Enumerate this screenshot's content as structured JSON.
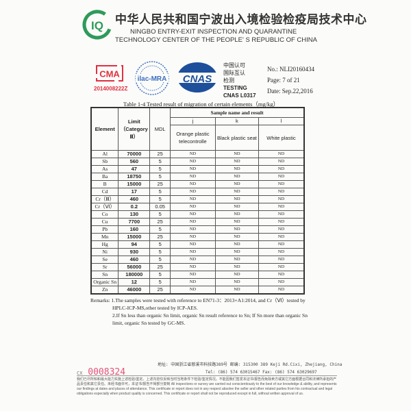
{
  "header": {
    "cn_title": "中华人民共和国宁波出入境检验检疫局技术中心",
    "en_line1": "NINGBO ENTRY-EXIT INSPECTION AND QUARANTINE",
    "en_line2": "TECHNOLOGY CENTER OF THE PEOPLE' S REPUBLIC OF CHINA",
    "logo_text": "CIQ",
    "cma_text": "CMA",
    "cma_number": "2014008222Z",
    "ilac_text": "ilac-MRA",
    "cnas_logo_text": "CNAS",
    "cnas_cn": [
      "中国认可",
      "国际互认",
      "检测"
    ],
    "cnas_testing": "TESTING",
    "cnas_number": "CNAS L0317",
    "no": "No.: NLI20160434",
    "page": "Page: 7 of 21",
    "date": "Date: Sep.22,2016"
  },
  "table": {
    "caption": "Table 1-4   Tested result of migration of certain elements（mg/kg）",
    "headers": {
      "element": "Element",
      "limit": "Limit（Category Ⅲ）",
      "mdl": "MDL",
      "sample_group": "Sample name and result"
    },
    "samples": [
      {
        "id": "j",
        "name": "Orange plastic telecontrolle"
      },
      {
        "id": "k",
        "name": "Black plastic seat"
      },
      {
        "id": "l",
        "name": "White plastic"
      }
    ],
    "rows": [
      {
        "element": "Al",
        "limit": "70000",
        "mdl": "25",
        "results": [
          "ND",
          "ND",
          "ND"
        ]
      },
      {
        "element": "Sb",
        "limit": "560",
        "mdl": "5",
        "results": [
          "ND",
          "ND",
          "ND"
        ]
      },
      {
        "element": "As",
        "limit": "47",
        "mdl": "5",
        "results": [
          "ND",
          "ND",
          "ND"
        ]
      },
      {
        "element": "Ba",
        "limit": "18750",
        "mdl": "5",
        "results": [
          "ND",
          "ND",
          "ND"
        ]
      },
      {
        "element": "B",
        "limit": "15000",
        "mdl": "25",
        "results": [
          "ND",
          "ND",
          "ND"
        ]
      },
      {
        "element": "Cd",
        "limit": "17",
        "mdl": "5",
        "results": [
          "ND",
          "ND",
          "ND"
        ]
      },
      {
        "element": "Cr（Ⅲ）",
        "limit": "460",
        "mdl": "5",
        "results": [
          "ND",
          "ND",
          "ND"
        ]
      },
      {
        "element": "Cr（Ⅵ）",
        "limit": "0.2",
        "mdl": "0.05",
        "results": [
          "ND",
          "ND",
          "ND"
        ]
      },
      {
        "element": "Co",
        "limit": "130",
        "mdl": "5",
        "results": [
          "ND",
          "ND",
          "ND"
        ]
      },
      {
        "element": "Cu",
        "limit": "7700",
        "mdl": "25",
        "results": [
          "ND",
          "ND",
          "ND"
        ]
      },
      {
        "element": "Pb",
        "limit": "160",
        "mdl": "5",
        "results": [
          "ND",
          "ND",
          "ND"
        ]
      },
      {
        "element": "Mn",
        "limit": "15000",
        "mdl": "25",
        "results": [
          "ND",
          "ND",
          "ND"
        ]
      },
      {
        "element": "Hg",
        "limit": "94",
        "mdl": "5",
        "results": [
          "ND",
          "ND",
          "ND"
        ]
      },
      {
        "element": "Ni",
        "limit": "930",
        "mdl": "5",
        "results": [
          "ND",
          "ND",
          "ND"
        ]
      },
      {
        "element": "Se",
        "limit": "460",
        "mdl": "5",
        "results": [
          "ND",
          "ND",
          "ND"
        ]
      },
      {
        "element": "Sr",
        "limit": "56000",
        "mdl": "25",
        "results": [
          "ND",
          "ND",
          "ND"
        ]
      },
      {
        "element": "Sn",
        "limit": "180000",
        "mdl": "5",
        "results": [
          "ND",
          "ND",
          "ND"
        ]
      },
      {
        "element": "Organic Sn",
        "limit": "12",
        "mdl": "5",
        "results": [
          "ND",
          "ND",
          "ND"
        ]
      },
      {
        "element": "Zn",
        "limit": "46000",
        "mdl": "25",
        "results": [
          "ND",
          "ND",
          "ND"
        ]
      }
    ]
  },
  "remarks": {
    "line1": "Remarks: 1.The samples were tested with reference to EN71-3：2013+A1:2014, and Cr（Ⅵ）tested by",
    "line1b": "HPLC-ICP-MS,other tested by ICP-AES.",
    "line2": "2.If Sn less than organic Sn limit, organic Sn result reference to Sn; If Sn more than organic Sn",
    "line2b": "limit, organic Sn tested by GC-MS."
  },
  "footer": {
    "address": "地址: 中国浙江省慈溪市科技路389号   邮编: 315300   389 Keji Rd.Cixi, Zhejiang, China",
    "phone": "Tel: (86) 574 63015467      Fax: (86) 574 63029697",
    "serial_prefix": "CX",
    "serial": "0008324",
    "disclaimer_cn": "我们已尽所知和最大能力实施上述检验/鉴定。上述内容仅反映当时当地条件下检验/鉴定情况。不能因我们签发本证书/报告而免除卖方或其它方面根据合同和法律所承担的产品责任和其它责任。未经书面许可，本证书/报告不得部分复制",
    "disclaimer_en": "All inspections or survey are carried out conscientiously to the best of our knowledge & ability, and represents our findings at dates and places of attendance. This certificate or report does not in any respect absolve the seller and other related parties from his contractual and legal obligations especially when product quality is concerned. This certificate or report shall not be reproduced except in full, without written approval of us."
  },
  "colors": {
    "ciq_green": "#2e9a5a",
    "cma_red": "#e03040",
    "ilac_blue": "#3a6fc0",
    "cnas_blue": "#1d4f9a",
    "serial_pink": "#e8507a"
  }
}
